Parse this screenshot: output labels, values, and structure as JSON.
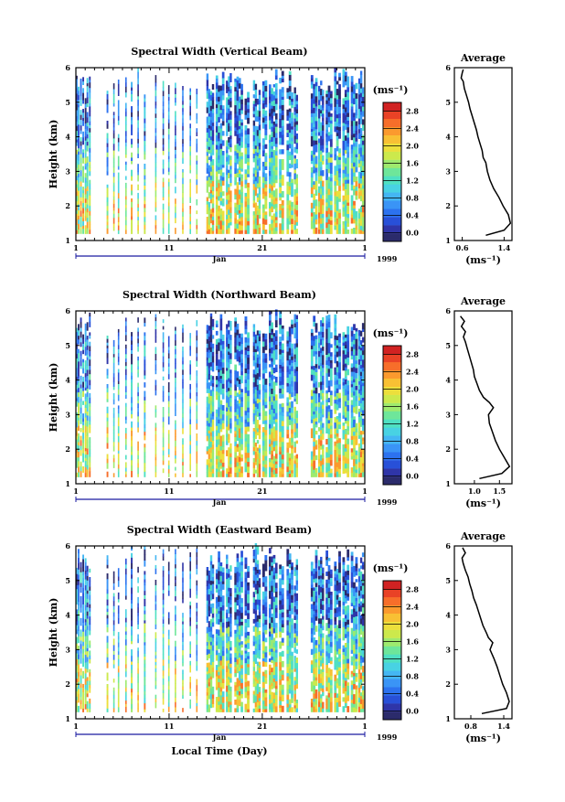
{
  "figure": {
    "xlabel": "Local Time (Day)",
    "colors": {
      "scale": [
        "#2b2b6b",
        "#2f35a8",
        "#2850d8",
        "#2c72ef",
        "#3a94f6",
        "#44b6f3",
        "#48d2e3",
        "#4fe0c2",
        "#6ee69a",
        "#9eea6e",
        "#cce94c",
        "#ecdf3c",
        "#f8c034",
        "#fb9a2e",
        "#f76e2a",
        "#e94226",
        "#d12222"
      ],
      "axis": "#000000",
      "timeline": "#1a1aa0"
    }
  },
  "chart_data": [
    {
      "type": "heatmap",
      "title": "Spectral Width (Vertical Beam)",
      "ylabel": "Height (km)",
      "x_ticks": [
        "1",
        "11",
        "21",
        "1"
      ],
      "x_month": "Jan",
      "x_year": "1999",
      "xlim": [
        1,
        32
      ],
      "ylim": [
        1,
        6
      ],
      "y_ticks": [
        "1",
        "2",
        "3",
        "4",
        "5",
        "6"
      ],
      "colorbar": {
        "unit": "(ms⁻¹)",
        "ticks": [
          "0.0",
          "0.4",
          "0.8",
          "1.2",
          "1.6",
          "2.0",
          "2.4",
          "2.8"
        ],
        "range": [
          -0.2,
          3.0
        ]
      },
      "average_profile": {
        "title": "Average",
        "xlabel": "(ms⁻¹)",
        "x_ticks": [
          "0.6",
          "1.4"
        ],
        "xlim": [
          0.45,
          1.55
        ],
        "ylim": [
          1,
          6
        ],
        "y_ticks": [
          "1",
          "2",
          "3",
          "4",
          "5",
          "6"
        ],
        "height": [
          1.15,
          1.3,
          1.5,
          1.75,
          2.0,
          2.25,
          2.5,
          2.75,
          3.0,
          3.25,
          3.4,
          3.6,
          3.8,
          4.0,
          4.2,
          4.4,
          4.6,
          4.8,
          5.0,
          5.2,
          5.4,
          5.6,
          5.7,
          5.85,
          5.95
        ],
        "width": [
          1.05,
          1.4,
          1.52,
          1.48,
          1.38,
          1.3,
          1.2,
          1.13,
          1.08,
          1.05,
          1.0,
          0.98,
          0.94,
          0.9,
          0.87,
          0.83,
          0.79,
          0.75,
          0.72,
          0.68,
          0.64,
          0.62,
          0.58,
          0.6,
          0.62
        ]
      }
    },
    {
      "type": "heatmap",
      "title": "Spectral Width (Northward Beam)",
      "ylabel": "Height (km)",
      "x_ticks": [
        "1",
        "11",
        "21",
        "1"
      ],
      "x_month": "Jan",
      "x_year": "1999",
      "xlim": [
        1,
        32
      ],
      "ylim": [
        1,
        6
      ],
      "y_ticks": [
        "1",
        "2",
        "3",
        "4",
        "5",
        "6"
      ],
      "colorbar": {
        "unit": "(ms⁻¹)",
        "ticks": [
          "0.0",
          "0.4",
          "0.8",
          "1.2",
          "1.6",
          "2.0",
          "2.4",
          "2.8"
        ],
        "range": [
          -0.2,
          3.0
        ]
      },
      "average_profile": {
        "title": "Average",
        "xlabel": "(ms⁻¹)",
        "x_ticks": [
          "1.0",
          "1.5"
        ],
        "xlim": [
          0.6,
          1.75
        ],
        "ylim": [
          1,
          6
        ],
        "y_ticks": [
          "1",
          "2",
          "3",
          "4",
          "5",
          "6"
        ],
        "height": [
          1.15,
          1.3,
          1.5,
          1.75,
          2.0,
          2.25,
          2.5,
          2.75,
          3.0,
          3.2,
          3.35,
          3.5,
          3.7,
          3.9,
          4.1,
          4.3,
          4.5,
          4.7,
          4.9,
          5.1,
          5.25,
          5.4,
          5.55,
          5.7,
          5.85
        ],
        "width": [
          1.1,
          1.55,
          1.7,
          1.6,
          1.5,
          1.42,
          1.36,
          1.3,
          1.28,
          1.38,
          1.3,
          1.18,
          1.1,
          1.05,
          1.0,
          0.98,
          0.94,
          0.9,
          0.86,
          0.82,
          0.78,
          0.82,
          0.74,
          0.8,
          0.72
        ]
      }
    },
    {
      "type": "heatmap",
      "title": "Spectral Width (Eastward Beam)",
      "ylabel": "Height (km)",
      "x_ticks": [
        "1",
        "11",
        "21",
        "1"
      ],
      "x_month": "Jan",
      "x_year": "1999",
      "xlim": [
        1,
        32
      ],
      "ylim": [
        1,
        6
      ],
      "y_ticks": [
        "1",
        "2",
        "3",
        "4",
        "5",
        "6"
      ],
      "colorbar": {
        "unit": "(ms⁻¹)",
        "ticks": [
          "0.0",
          "0.4",
          "0.8",
          "1.2",
          "1.6",
          "2.0",
          "2.4",
          "2.8"
        ],
        "range": [
          -0.2,
          3.0
        ]
      },
      "average_profile": {
        "title": "Average",
        "xlabel": "(ms⁻¹)",
        "x_ticks": [
          "0.8",
          "1.4"
        ],
        "xlim": [
          0.5,
          1.55
        ],
        "ylim": [
          1,
          6
        ],
        "y_ticks": [
          "1",
          "2",
          "3",
          "4",
          "5",
          "6"
        ],
        "height": [
          1.15,
          1.3,
          1.5,
          1.75,
          2.0,
          2.25,
          2.5,
          2.75,
          3.0,
          3.2,
          3.35,
          3.5,
          3.7,
          3.9,
          4.1,
          4.3,
          4.5,
          4.7,
          4.9,
          5.1,
          5.3,
          5.5,
          5.65,
          5.8,
          5.95
        ],
        "width": [
          1.0,
          1.45,
          1.5,
          1.45,
          1.38,
          1.33,
          1.28,
          1.22,
          1.15,
          1.2,
          1.12,
          1.08,
          1.02,
          0.98,
          0.94,
          0.9,
          0.85,
          0.82,
          0.78,
          0.75,
          0.7,
          0.66,
          0.64,
          0.7,
          0.65
        ]
      }
    }
  ]
}
